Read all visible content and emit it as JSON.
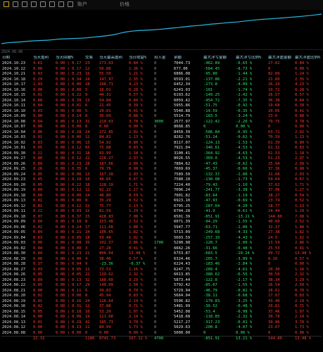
{
  "toolbar": {
    "labels": [
      "账户",
      "价格"
    ]
  },
  "chart": {
    "date_label": "2024.08.08",
    "line_color": "#29b8e0",
    "series": [
      0,
      0.8,
      1.2,
      1.5,
      2,
      2.4,
      2.7,
      2.9,
      3.4,
      3.9,
      4.1,
      4.4,
      4.6,
      4.9,
      5.5,
      6,
      6.6,
      7.4,
      8.6,
      9.8,
      10.6,
      11.1,
      11.3,
      11.6,
      12,
      12.5,
      13.1,
      13.6,
      14.2,
      14.9,
      15.3,
      15.8,
      16.4,
      16.9,
      17.4,
      17.9,
      18.3,
      18.9,
      19.5,
      20.1,
      20.6,
      20.9,
      21.3,
      21.7,
      22.2,
      22.6,
      23.1,
      23.7,
      24.3,
      25
    ]
  },
  "table": {
    "headers": [
      "日期",
      "当天盈利",
      "当天回撤%",
      "交易",
      "当天最高盈利",
      "当日收益%",
      "出入金",
      "余额",
      "最大浮亏金额",
      "最大浮亏比例%",
      "最大浮盈金额",
      "最大浮盈比例%"
    ],
    "rows": [
      [
        "2024.10.23",
        "4.61",
        "0.00 | 0.17",
        "23",
        "273.63",
        "0.84 %",
        "0",
        "7044.73",
        "-462.89",
        "-6.65 %",
        "27.62",
        "0.84 %"
      ],
      [
        "2024.10.22",
        "0.00",
        "0.00 | 0.17",
        "12",
        "56.88",
        "1.36 %",
        "0",
        "677.06",
        "-584.45",
        "-8.73 %",
        "0",
        "0.00 %"
      ],
      [
        "2024.10.21",
        "0.43",
        "0.00 | 0.23",
        "16",
        "55.50",
        "1.21 %",
        "0",
        "6866.08",
        "-95.80",
        "-1.44 %",
        "82.89",
        "1.24 %"
      ],
      [
        "2024.10.18",
        "0.29",
        "0.00 | 0.34",
        "24",
        "147.97",
        "2.35 %",
        "0",
        "6593.01",
        "-137.86",
        "-2.21 %",
        "21.60",
        "2.35 %"
      ],
      [
        "2024.10.17",
        "1.03",
        "0.00 | 0.00",
        "18",
        "296.71",
        "4.23 %",
        "0",
        "6452.34",
        "-273.8",
        "-4.09 %",
        "26.10",
        "4.23 %"
      ],
      [
        "2024.10.16",
        "0.00",
        "0.00 | 0.00",
        "5",
        "16.01",
        "0.28 %",
        "0",
        "6243.93",
        "-101",
        "-1.74 %",
        "10.72",
        "0.28 %"
      ],
      [
        "2024.10.15",
        "0.01",
        "0.00 | 0.22",
        "9",
        "44.31",
        "0.57 %",
        "0",
        "6193.62",
        "-149.25",
        "-2.42 %",
        "26.57",
        "0.57 %"
      ],
      [
        "2024.10.14",
        "0.88",
        "0.00 | 0.39",
        "13",
        "54.84",
        "0.84 %",
        "0",
        "6059.42",
        "-454.72",
        "-7.35 %",
        "36.38",
        "0.84 %"
      ],
      [
        "2024.10.11",
        "0.04",
        "0.00 | 0.01",
        "6",
        "21.45",
        "0.39 %",
        "0",
        "5955.86",
        "-51.75",
        "-0.92 %",
        "19.68",
        "0.39 %"
      ],
      [
        "2024.10.10",
        "0.03",
        "0.00 | 0.00",
        "5",
        "20.01",
        "0.41 %",
        "0",
        "5540.88",
        "-19.59",
        "-0.35 %",
        "20.05",
        "0.41 %"
      ],
      [
        "2024.10.09",
        "0.00",
        "0.00 | 0.14",
        "8",
        "36.69",
        "0.88 %",
        "0",
        "5514.79",
        "-183.5",
        "-3.24 %",
        "23.0",
        "0.88 %"
      ],
      [
        "2024.10.08",
        "0.64",
        "0.00 | 0.13",
        "31",
        "210.63",
        "3.78 %",
        "3000",
        "2577.97",
        "-122.42",
        "-2.26 %",
        "79.75",
        "3.78 %"
      ],
      [
        "2024.10.07",
        "0.00",
        "0.00 | 0.00",
        "0",
        "0.00",
        "0.00 %",
        "0",
        "8668.85",
        "0",
        "0.00 %",
        "0",
        "0.00 %"
      ],
      [
        "2024.10.04",
        "0.96",
        "0.00 | 0.28",
        "24",
        "172.85",
        "2.02 %",
        "0",
        "8450.39",
        "-586.84",
        "-6.95 %",
        "63.71",
        "2.02 %"
      ],
      [
        "2024.10.03",
        "0.01",
        "0.00 | 0.00",
        "12",
        "84.81",
        "1.13 %",
        "0",
        "8262.76",
        "-51.14",
        "-0.62 %",
        "70.59",
        "1.13 %"
      ],
      [
        "2024.10.02",
        "0.83",
        "0.00 | 0.06",
        "13",
        "54.92",
        "0.80 %",
        "0",
        "8117.07",
        "-124.13",
        "-1.53 %",
        "61.39",
        "0.80 %"
      ],
      [
        "2024.10.01",
        "0.05",
        "0.00 | 0.12",
        "65",
        "75.88",
        "0.83 %",
        "0",
        "7921.04",
        "-346.61",
        "-4.53 %",
        "61.32",
        "0.83 %"
      ],
      [
        "2024.09.30",
        "0.22",
        "0.00 | 0.31",
        "18",
        "93.99",
        "1.18 %",
        "0",
        "3100.41",
        "-364.92",
        "-4.63 %",
        "61.53",
        "1.18 %"
      ],
      [
        "2024.09.27",
        "0.80",
        "0.00 | 0.12",
        "22",
        "226.27",
        "2.97 %",
        "0",
        "8026.55",
        "-369.0",
        "-4.53 %",
        "51.23",
        "2.97 %"
      ],
      [
        "2024.09.26",
        "0.89",
        "0.00 | 0.23",
        "28",
        "187.66",
        "2.09 %",
        "0",
        "7884.62",
        "-47.43",
        "-0.62 %",
        "25.94",
        "2.09 %"
      ],
      [
        "2024.09.25",
        "0.26",
        "0.00 | 0.35",
        "6",
        "79.76",
        "0.98 %",
        "0",
        "7669.69",
        "-45.37",
        "-0.60 %",
        "37.36",
        "0.98 %"
      ],
      [
        "2024.09.24",
        "0.05",
        "0.00 | 0.00",
        "13",
        "167.28",
        "2.03 %",
        "0",
        "7589.50",
        "-132.37",
        "-1.80 %",
        "31.68",
        "2.03 %"
      ],
      [
        "2024.09.23",
        "0.45",
        "0.00 | 0.18",
        "10",
        "48.65",
        "0.67 %",
        "0",
        "7580.10",
        "-130.08",
        "-1.73 %",
        "54.64",
        "0.67 %"
      ],
      [
        "2024.09.20",
        "0.05",
        "0.00 | 0.22",
        "18",
        "128.19",
        "1.71 %",
        "0",
        "7224.40",
        "-79.43",
        "-1.10 %",
        "37.62",
        "1.71 %"
      ],
      [
        "2024.09.19",
        "0.09",
        "0.00 | 0.12",
        "12",
        "92.22",
        "1.27 %",
        "0",
        "7096.24",
        "-241.77",
        "-3.38 %",
        "37.96",
        "1.27 %"
      ],
      [
        "2024.09.18",
        "0.60",
        "0.00 | 0.00",
        "14",
        "40.80",
        "0.59 %",
        "0",
        "7001.82",
        "-83.64",
        "-1.19 %",
        "28.27",
        "0.59 %"
      ],
      [
        "2024.09.13",
        "0.01",
        "0.00 | 0.00",
        "8",
        "35.29",
        "0.52 %",
        "0",
        "6923.10",
        "-47.93",
        "-0.69 %",
        "23.74",
        "0.52 %"
      ],
      [
        "2024.09.12",
        "0.81",
        "0.00 | 0.12",
        "22",
        "75.77",
        "1.13 %",
        "0",
        "6795.25",
        "-287.64",
        "-4.20 %",
        "18.77",
        "1.13 %"
      ],
      [
        "2024.09.11",
        "0.22",
        "0.00 | 0.03",
        "12",
        "81.59",
        "1.29 %",
        "0",
        "6704.28",
        "-41.9",
        "-0.61 %",
        "24.44",
        "1.29 %"
      ],
      [
        "2024.09.10",
        "0.07",
        "0.00 | 0.37",
        "15",
        "428.83",
        "7.08 %",
        "0",
        "6501.39",
        "-851.91",
        "-13.21 %",
        "144.80",
        "7.08 %"
      ],
      [
        "2024.09.09",
        "0.04",
        "0.00 | 0.10",
        "8",
        "153.48",
        "2.52 %",
        "0",
        "6071.39",
        "-94.29",
        "-1.55 %",
        "40.60",
        "2.52 %"
      ],
      [
        "2024.09.06",
        "0.02",
        "0.00 | 0.24",
        "17",
        "111.68",
        "1.88 %",
        "0",
        "5947.77",
        "-63.71",
        "-1.06 %",
        "32.17",
        "1.88 %"
      ],
      [
        "2024.09.05",
        "0.84",
        "0.00 | 0.21",
        "24",
        "106.65",
        "1.82 %",
        "0",
        "5713.09",
        "-249.68",
        "-4.33 %",
        "27.38",
        "1.82 %"
      ],
      [
        "2024.09.04",
        "0.03",
        "0.00 | 0.05",
        "18",
        "59.48",
        "1.02 %",
        "0",
        "5603.59",
        "-257.10",
        "-4.43 %",
        "24.5",
        "1.02 %"
      ],
      [
        "2024.09.03",
        "0.00",
        "0.00 | 0.08",
        "35",
        "102.57",
        "2.86 %",
        "1700",
        "5290.98",
        "-128.7",
        "-2.00 %",
        "13.59",
        "2.86 %"
      ],
      [
        "2024.09.02",
        "0.04",
        "0.00 | 0.00",
        "3",
        "27.28",
        "0.41 %",
        "0",
        "6662.26",
        "-31.66",
        "-0.48 %",
        "25.53",
        "0.41 %"
      ],
      [
        "2024.08.30",
        "0.84",
        "0.00 | 0.23",
        "21",
        "806.64",
        "13.48 %",
        "0",
        "6753.87",
        "-683.5",
        "-10.24 %",
        "49.72",
        "13.48 %"
      ],
      [
        "2024.08.29",
        "0.00",
        "0.00 | 0.00",
        "4",
        "38.46",
        "0.57 %",
        "0",
        "6324.46",
        "-265.7",
        "-3.89 %",
        "8.28",
        "0.57 %"
      ],
      [
        "2024.08.28",
        "0.37",
        "0.00 | 0.04",
        "9",
        "-23.36",
        "-0.37 %",
        "0",
        "6224.43",
        "-183.46",
        "-2.84 %",
        "0",
        "0.00 %"
      ],
      [
        "2024.08.27",
        "0.03",
        "0.00 | 0.05",
        "11",
        "73.53",
        "1.16 %",
        "0",
        "6247.75",
        "-289.4",
        "-4.61 %",
        "20.30",
        "1.16 %"
      ],
      [
        "2024.08.26",
        "0.05",
        "0.00 | 0.05",
        "22",
        "139.62",
        "2.32 %",
        "0",
        "6013.85",
        "-380.62",
        "-6.55 %",
        "30.50",
        "2.32 %"
      ],
      [
        "2024.08.23",
        "0.89",
        "0.00 | 0.13",
        "32",
        "188.60",
        "3.29 %",
        "0",
        "5873.44",
        "-122.8",
        "-2.17 %",
        "38.34",
        "3.29 %"
      ],
      [
        "2024.08.22",
        "0.05",
        "0.00 | 0.17",
        "29",
        "140.09",
        "2.50 %",
        "0",
        "5792.42",
        "-85.67",
        "-1.55 %",
        "26.54",
        "2.50 %"
      ],
      [
        "2024.08.21",
        "0.00",
        "0.00 | 0.11",
        "6",
        "39.83",
        "0.70 %",
        "0",
        "5729.94",
        "-46.79",
        "-0.82 %",
        "28.61",
        "0.70 %"
      ],
      [
        "2024.08.20",
        "0.02",
        "0.00 | 0.00",
        "8",
        "45.94",
        "0.83 %",
        "0",
        "5664.94",
        "-38.11",
        "-0.68 %",
        "17.67",
        "0.83 %"
      ],
      [
        "2024.08.19",
        "0.01",
        "0.00 | 0.16",
        "24",
        "116.64",
        "2.19 %",
        "0",
        "5596.82",
        "-179.83",
        "-3.25 %",
        "43.40",
        "2.19 %"
      ],
      [
        "2024.08.16",
        "0.42",
        "0.00 | 0.31",
        "12",
        "37.88",
        "0.71 %",
        "0",
        "5481.99",
        "-30.52",
        "-0.48 %",
        "20.81",
        "0.71 %"
      ],
      [
        "2024.08.15",
        "0.05",
        "0.00 | 0.18",
        "10",
        "53.20",
        "1.07 %",
        "0",
        "5452.08",
        "-53.4",
        "-0.98 %",
        "37.46",
        "1.07 %"
      ],
      [
        "2024.08.14",
        "0.00",
        "0.00 | 0.00",
        "19",
        "111.68",
        "2.14 %",
        "0",
        "5418.68",
        "-118.85",
        "-2.32 %",
        "39.78",
        "2.14 %"
      ],
      [
        "2024.08.13",
        "0.01",
        "0.00 | 0.29",
        "42",
        "185.73",
        "3.70 %",
        "0",
        "5217.27",
        "-317.23",
        "-6.01 %",
        "39.06",
        "3.70 %"
      ],
      [
        "2024.08.12",
        "0.00",
        "0.00 | 0.13",
        "11",
        "84.94",
        "1.73 %",
        "0",
        "5029.63",
        "-200.8",
        "-4.07 %",
        "23.67",
        "1.73 %"
      ],
      [
        "2024.08.08",
        "0.00",
        "0.00 | 0.00",
        "0",
        "0.00",
        "0.00 %",
        "0",
        "5000.00",
        "0",
        "0.00 %",
        "0",
        "0.00 %"
      ]
    ],
    "totals": [
      "",
      "22.31",
      "",
      "1180",
      "8741.73",
      "167.12 %",
      "4700",
      "",
      "-851.91",
      "13.21 %",
      "144.80",
      "13.48 %"
    ]
  }
}
